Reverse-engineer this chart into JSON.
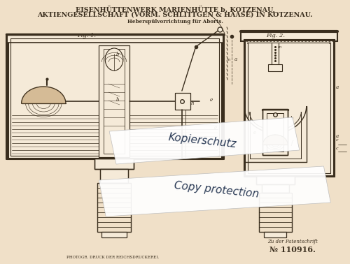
{
  "bg_color": "#f0e0c8",
  "paper_color": "#f5ead8",
  "line_color": "#3a2e1e",
  "title_line1": "EISENHÜTTENWERK MARIENHÜTTE b. KOTZENAU,",
  "title_line2": "AKTIENGESELLSCHAFT (VORM. SCHLITTGEN & HAASE) IN KOTZENAU.",
  "subtitle": "Heberspülvorrichtung für Aborts.",
  "fig1_label": "Fig. 1.",
  "fig2_label": "Fig. 2.",
  "patent_ref": "Zu der Patentschrift",
  "patent_num": "№ 110916.",
  "bottom_text": "PHOTOGR. DRUCK DER REICHSDRUCKEREI.",
  "watermark1": "Kopierschutz",
  "watermark2": "Copy protection",
  "title_fontsize": 6.8,
  "subtitle_fontsize": 5.2,
  "label_fontsize": 6.0
}
